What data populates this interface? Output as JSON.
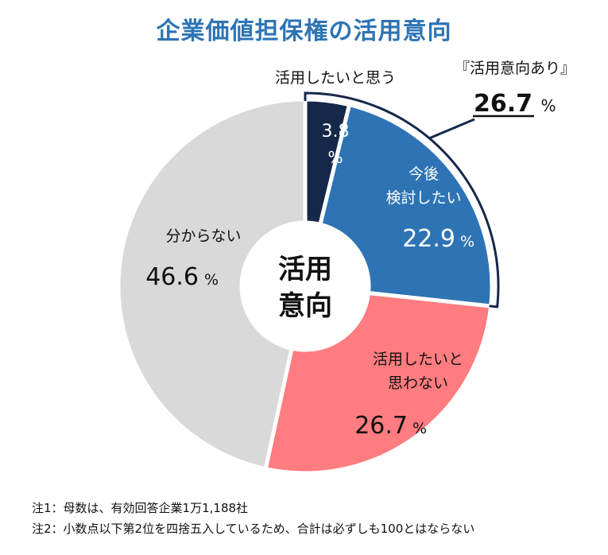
{
  "chart_data": {
    "type": "pie",
    "style": "donut",
    "title": "企業価値担保権の活用意向",
    "center_label": [
      "活用",
      "意向"
    ],
    "slices": [
      {
        "label": "活用したいと思う",
        "value": 3.8,
        "value_text": "3.8",
        "unit": "%",
        "color": "#16284a"
      },
      {
        "label": "今後検討したい",
        "label_lines": [
          "今後",
          "検討したい"
        ],
        "value": 22.9,
        "value_text": "22.9",
        "unit": "%",
        "color": "#2e74b5"
      },
      {
        "label": "活用したいと思わない",
        "label_lines": [
          "活用したいと",
          "思わない"
        ],
        "value": 26.7,
        "value_text": "26.7",
        "unit": "%",
        "color": "#ff7c80"
      },
      {
        "label": "分からない",
        "value": 46.6,
        "value_text": "46.6",
        "unit": "%",
        "color": "#d9d9d9"
      }
    ],
    "bracket": {
      "label": "『活用意向あり』",
      "value": 26.7,
      "value_text": "26.7",
      "unit": "%"
    }
  },
  "notes": [
    "注1：母数は、有効回答企業1万1,188社",
    "注2：小数点以下第2位を四捨五入しているため、合計は必ずしも100とはならない"
  ]
}
